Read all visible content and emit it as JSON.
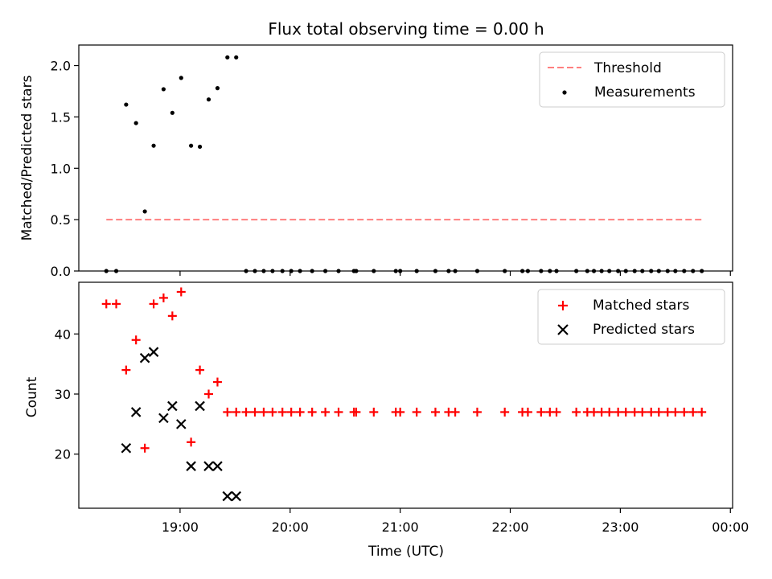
{
  "figure": {
    "title": "Flux total observing time = 0.00 h"
  },
  "chart_data": [
    {
      "type": "scatter",
      "ylabel": "Matched/Predicted stars",
      "xlim": [
        18.08,
        24.02
      ],
      "ylim": [
        0,
        2.2
      ],
      "yticks": [
        0.0,
        0.5,
        1.0,
        1.5,
        2.0
      ],
      "ytick_labels": [
        "0.0",
        "0.5",
        "1.0",
        "1.5",
        "2.0"
      ],
      "legend": {
        "placement": "top-right",
        "entries": [
          {
            "label": "Threshold",
            "style": "dashed-line",
            "color": "#ff7f7f"
          },
          {
            "label": "Measurements",
            "style": "dot",
            "color": "#000000"
          }
        ]
      },
      "series": [
        {
          "name": "Threshold",
          "kind": "dashed-line",
          "color": "#ff7f7f",
          "x": [
            18.33,
            23.76
          ],
          "y": [
            0.5,
            0.5
          ]
        },
        {
          "name": "Measurements",
          "kind": "dot",
          "color": "#000000",
          "x": [
            18.33,
            18.42,
            18.51,
            18.6,
            18.68,
            18.76,
            18.85,
            18.93,
            19.01,
            19.1,
            19.18,
            19.26,
            19.34,
            19.43,
            19.51,
            19.6,
            19.68,
            19.76,
            19.84,
            19.93,
            20.01,
            20.09,
            20.2,
            20.32,
            20.44,
            20.58,
            20.6,
            20.76,
            20.96,
            21.0,
            21.15,
            21.32,
            21.44,
            21.5,
            21.7,
            21.95,
            22.11,
            22.16,
            22.28,
            22.36,
            22.42,
            22.6,
            22.7,
            22.76,
            22.83,
            22.9,
            22.98,
            23.05,
            23.13,
            23.2,
            23.28,
            23.35,
            23.43,
            23.5,
            23.58,
            23.66,
            23.74
          ],
          "y": [
            0,
            0,
            1.62,
            1.44,
            0.58,
            1.22,
            1.77,
            1.54,
            1.88,
            1.22,
            1.21,
            1.67,
            1.78,
            2.08,
            2.08,
            0,
            0,
            0,
            0,
            0,
            0,
            0,
            0,
            0,
            0,
            0,
            0,
            0,
            0,
            0,
            0,
            0,
            0,
            0,
            0,
            0,
            0,
            0,
            0,
            0,
            0,
            0,
            0,
            0,
            0,
            0,
            0,
            0,
            0,
            0,
            0,
            0,
            0,
            0,
            0,
            0,
            0
          ]
        }
      ]
    },
    {
      "type": "scatter",
      "xlabel": "Time (UTC)",
      "ylabel": "Count",
      "xlim": [
        18.08,
        24.02
      ],
      "ylim": [
        11,
        48.6
      ],
      "xticks": [
        19,
        20,
        21,
        22,
        23,
        24
      ],
      "xtick_labels": [
        "19:00",
        "20:00",
        "21:00",
        "22:00",
        "23:00",
        "00:00"
      ],
      "yticks": [
        20,
        30,
        40
      ],
      "ytick_labels": [
        "20",
        "30",
        "40"
      ],
      "legend": {
        "placement": "top-right",
        "entries": [
          {
            "label": "Matched stars",
            "style": "plus",
            "color": "#ff0000"
          },
          {
            "label": "Predicted stars",
            "style": "cross",
            "color": "#000000"
          }
        ]
      },
      "series": [
        {
          "name": "Matched stars",
          "kind": "plus",
          "color": "#ff0000",
          "x": [
            18.33,
            18.42,
            18.51,
            18.6,
            18.68,
            18.76,
            18.85,
            18.93,
            19.01,
            19.1,
            19.18,
            19.26,
            19.34,
            19.43,
            19.51,
            19.6,
            19.68,
            19.76,
            19.84,
            19.93,
            20.01,
            20.09,
            20.2,
            20.32,
            20.44,
            20.58,
            20.6,
            20.76,
            20.96,
            21.0,
            21.15,
            21.32,
            21.44,
            21.5,
            21.7,
            21.95,
            22.11,
            22.16,
            22.28,
            22.36,
            22.42,
            22.6,
            22.7,
            22.76,
            22.83,
            22.9,
            22.98,
            23.05,
            23.13,
            23.2,
            23.28,
            23.35,
            23.43,
            23.5,
            23.58,
            23.66,
            23.74
          ],
          "y": [
            45,
            45,
            34,
            39,
            21,
            45,
            46,
            43,
            47,
            22,
            34,
            30,
            32,
            27,
            27,
            27,
            27,
            27,
            27,
            27,
            27,
            27,
            27,
            27,
            27,
            27,
            27,
            27,
            27,
            27,
            27,
            27,
            27,
            27,
            27,
            27,
            27,
            27,
            27,
            27,
            27,
            27,
            27,
            27,
            27,
            27,
            27,
            27,
            27,
            27,
            27,
            27,
            27,
            27,
            27,
            27,
            27
          ]
        },
        {
          "name": "Predicted stars",
          "kind": "cross",
          "color": "#000000",
          "x": [
            18.51,
            18.6,
            18.68,
            18.76,
            18.85,
            18.93,
            19.01,
            19.1,
            19.18,
            19.26,
            19.34,
            19.43,
            19.51
          ],
          "y": [
            21,
            27,
            36,
            37,
            26,
            28,
            25,
            18,
            28,
            18,
            18,
            13,
            13
          ]
        }
      ]
    }
  ]
}
